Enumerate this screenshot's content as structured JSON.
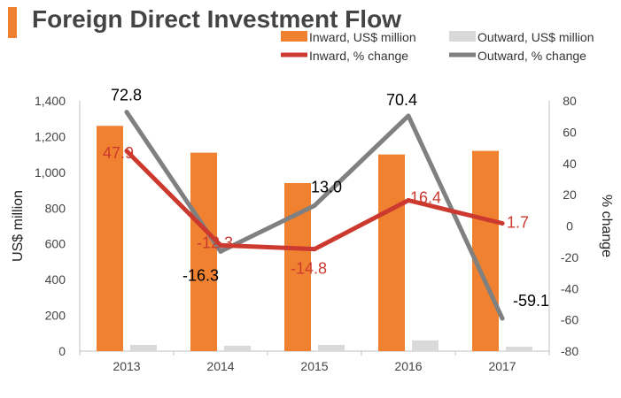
{
  "title": "Foreign Direct Investment Flow",
  "colors": {
    "accent": "#f08130",
    "inward": "#f08130",
    "outward": "#d9d9d9",
    "inward_change": "#cc3a2f",
    "outward_change": "#808080"
  },
  "chart_data": {
    "type": "bar-line-combo",
    "title": "Foreign Direct Investment Flow",
    "categories": [
      "2013",
      "2014",
      "2015",
      "2016",
      "2017"
    ],
    "series": [
      {
        "name": "Inward, US$ million",
        "type": "bar",
        "axis": "left",
        "values": [
          1260,
          1110,
          940,
          1100,
          1120
        ]
      },
      {
        "name": "Outward, US$ million",
        "type": "bar",
        "axis": "left",
        "values": [
          35,
          30,
          35,
          60,
          25
        ]
      },
      {
        "name": "Inward, % change",
        "type": "line",
        "axis": "right",
        "values": [
          47.9,
          -12.3,
          -14.8,
          16.4,
          1.7
        ],
        "labels": [
          "47.9",
          "-12.3",
          "-14.8",
          "16.4",
          "1.7"
        ]
      },
      {
        "name": "Outward, % change",
        "type": "line",
        "axis": "right",
        "values": [
          72.8,
          -16.3,
          13.0,
          70.4,
          -59.1
        ],
        "labels": [
          "72.8",
          "-16.3",
          "13.0",
          "70.4",
          "-59.1"
        ]
      }
    ],
    "ylabel": "US$ million",
    "y2label": "% change",
    "ylim": [
      0,
      1400
    ],
    "y2lim": [
      -80,
      80
    ],
    "yticks": [
      "0",
      "200",
      "400",
      "600",
      "800",
      "1,000",
      "1,200",
      "1,400"
    ],
    "y2ticks": [
      "-80",
      "-60",
      "-40",
      "-20",
      "0",
      "20",
      "40",
      "60",
      "80"
    ],
    "legend_position": "top-right",
    "grid": false
  }
}
